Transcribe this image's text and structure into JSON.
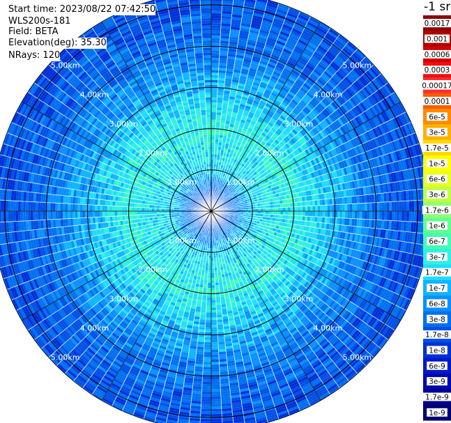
{
  "info": {
    "start_time": "Start time: 2023/08/22 07:42:50",
    "instrument": "WLS200s-181",
    "field": "Field: BETA",
    "elevation": "Elevation(deg): 35.30",
    "nrays": "NRays: 120"
  },
  "colorbar": {
    "title": "-1 sr",
    "labels": [
      "0.0017",
      "0.001",
      "0.0006",
      "0.0003",
      "0.00017",
      "0.0001",
      "6e-5",
      "3e-5",
      "1.7e-5",
      "1e-5",
      "6e-6",
      "3e-6",
      "1.7e-6",
      "1e-6",
      "6e-7",
      "3e-7",
      "1.7e-7",
      "1e-7",
      "6e-8",
      "3e-8",
      "1.7e-8",
      "1e-8",
      "6e-9",
      "3e-9",
      "1.7e-9",
      "1e-9"
    ],
    "colors": [
      "#8b0000",
      "#b00000",
      "#d00000",
      "#ee1010",
      "#ff3030",
      "#ff5a00",
      "#ff8a00",
      "#ffb000",
      "#ffd800",
      "#ffff00",
      "#e6ff20",
      "#c0ff40",
      "#90ff70",
      "#60ff90",
      "#40ffb4",
      "#30f0e0",
      "#20dcff",
      "#10b4ff",
      "#0a90ff",
      "#0070f0",
      "#0050e6",
      "#0030d8",
      "#0018c8",
      "#0008b0",
      "#000090",
      "#000070"
    ]
  },
  "chart_data": {
    "type": "heatmap",
    "projection": "polar-ppi",
    "rays": 120,
    "range_unit": "km",
    "range_rings_km": [
      1.0,
      2.0,
      3.0,
      4.0,
      5.0
    ],
    "range_labels": [
      "1.00km",
      "2.00km",
      "3.00km",
      "4.00km",
      "5.00km"
    ],
    "max_range_km": 5.3,
    "azimuth_lines_deg": [
      0,
      30,
      60,
      90,
      120,
      150,
      180,
      210,
      240,
      270,
      300,
      330
    ],
    "radial_profile": [
      {
        "range_km": 0.0,
        "value": "6e-9"
      },
      {
        "range_km": 0.5,
        "value": "3e-8"
      },
      {
        "range_km": 1.0,
        "value": "1.7e-7"
      },
      {
        "range_km": 2.0,
        "value": "3e-7"
      },
      {
        "range_km": 3.0,
        "value": "1e-7"
      },
      {
        "range_km": 4.0,
        "value": "3e-8"
      },
      {
        "range_km": 5.0,
        "value": "1.7e-8"
      }
    ]
  }
}
